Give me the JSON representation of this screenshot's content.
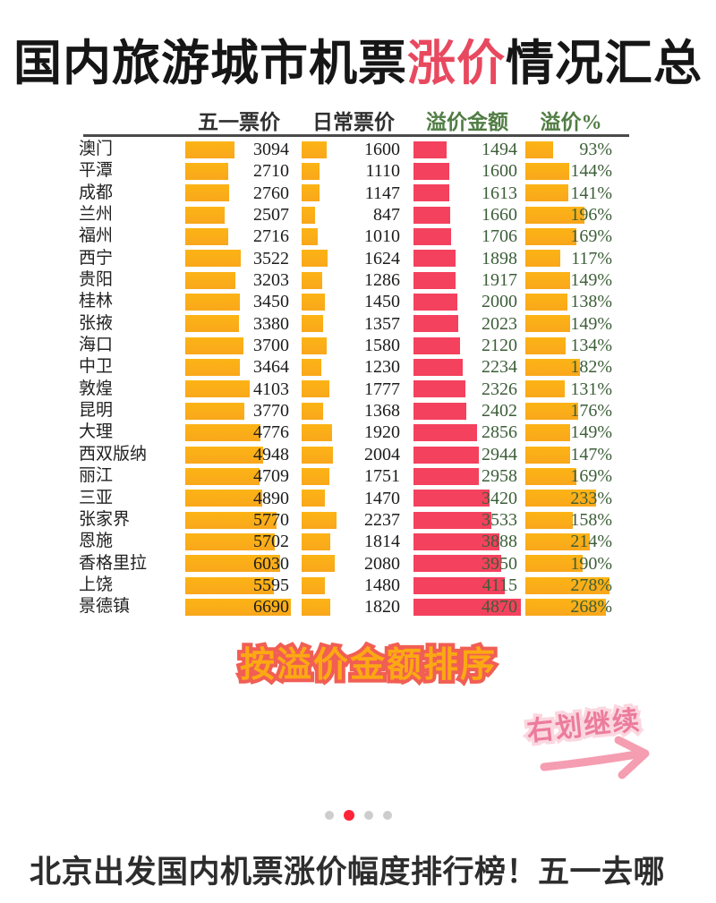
{
  "title": {
    "prefix": "国内旅游城市机票",
    "highlight": "涨价",
    "suffix": "情况汇总"
  },
  "table": {
    "headers": {
      "may": "五一票价",
      "daily": "日常票价",
      "premium": "溢价金额",
      "pct": "溢价%"
    },
    "rows": [
      {
        "city": "澳门",
        "may": 3094,
        "daily": 1600,
        "premium": 1494,
        "pct": 93
      },
      {
        "city": "平潭",
        "may": 2710,
        "daily": 1110,
        "premium": 1600,
        "pct": 144
      },
      {
        "city": "成都",
        "may": 2760,
        "daily": 1147,
        "premium": 1613,
        "pct": 141
      },
      {
        "city": "兰州",
        "may": 2507,
        "daily": 847,
        "premium": 1660,
        "pct": 196
      },
      {
        "city": "福州",
        "may": 2716,
        "daily": 1010,
        "premium": 1706,
        "pct": 169
      },
      {
        "city": "西宁",
        "may": 3522,
        "daily": 1624,
        "premium": 1898,
        "pct": 117
      },
      {
        "city": "贵阳",
        "may": 3203,
        "daily": 1286,
        "premium": 1917,
        "pct": 149
      },
      {
        "city": "桂林",
        "may": 3450,
        "daily": 1450,
        "premium": 2000,
        "pct": 138
      },
      {
        "city": "张掖",
        "may": 3380,
        "daily": 1357,
        "premium": 2023,
        "pct": 149
      },
      {
        "city": "海口",
        "may": 3700,
        "daily": 1580,
        "premium": 2120,
        "pct": 134
      },
      {
        "city": "中卫",
        "may": 3464,
        "daily": 1230,
        "premium": 2234,
        "pct": 182
      },
      {
        "city": "敦煌",
        "may": 4103,
        "daily": 1777,
        "premium": 2326,
        "pct": 131
      },
      {
        "city": "昆明",
        "may": 3770,
        "daily": 1368,
        "premium": 2402,
        "pct": 176
      },
      {
        "city": "大理",
        "may": 4776,
        "daily": 1920,
        "premium": 2856,
        "pct": 149
      },
      {
        "city": "西双版纳",
        "may": 4948,
        "daily": 2004,
        "premium": 2944,
        "pct": 147
      },
      {
        "city": "丽江",
        "may": 4709,
        "daily": 1751,
        "premium": 2958,
        "pct": 169
      },
      {
        "city": "三亚",
        "may": 4890,
        "daily": 1470,
        "premium": 3420,
        "pct": 233
      },
      {
        "city": "张家界",
        "may": 5770,
        "daily": 2237,
        "premium": 3533,
        "pct": 158
      },
      {
        "city": "恩施",
        "may": 5702,
        "daily": 1814,
        "premium": 3888,
        "pct": 214
      },
      {
        "city": "香格里拉",
        "may": 6030,
        "daily": 2080,
        "premium": 3950,
        "pct": 190
      },
      {
        "city": "上饶",
        "may": 5595,
        "daily": 1480,
        "premium": 4115,
        "pct": 278
      },
      {
        "city": "景德镇",
        "may": 6690,
        "daily": 1820,
        "premium": 4870,
        "pct": 268
      }
    ]
  },
  "notes": {
    "sort_note": "按溢价金额排序",
    "swipe_note": "右划继续"
  },
  "pagination": {
    "dots": 4,
    "active_index": 1
  },
  "caption": "北京出发国内机票涨价幅度排行榜！五一去哪",
  "colors": {
    "bar_orange": "#FBAC17",
    "bar_red": "#F4415E",
    "header_green": "#517D44",
    "value_green": "#3C5E38",
    "title_highlight": "#E8495F",
    "note_fill_orange": "#FBA913",
    "note_stroke_red": "#F15E54",
    "swipe_pink": "#EC7C9B",
    "arrow_pink": "#F59DB1",
    "dot_active": "#FF2438",
    "dot_inactive": "#CDCDCD"
  },
  "chart_data": {
    "type": "bar",
    "orientation": "horizontal",
    "title": "国内旅游城市机票涨价情况汇总",
    "note": "按溢价金额排序",
    "categories": [
      "澳门",
      "平潭",
      "成都",
      "兰州",
      "福州",
      "西宁",
      "贵阳",
      "桂林",
      "张掖",
      "海口",
      "中卫",
      "敦煌",
      "昆明",
      "大理",
      "西双版纳",
      "丽江",
      "三亚",
      "张家界",
      "恩施",
      "香格里拉",
      "上饶",
      "景德镇"
    ],
    "series": [
      {
        "name": "五一票价",
        "color": "#FBAC17",
        "values": [
          3094,
          2710,
          2760,
          2507,
          2716,
          3522,
          3203,
          3450,
          3380,
          3700,
          3464,
          4103,
          3770,
          4776,
          4948,
          4709,
          4890,
          5770,
          5702,
          6030,
          5595,
          6690
        ]
      },
      {
        "name": "日常票价",
        "color": "#FBAC17",
        "values": [
          1600,
          1110,
          1147,
          847,
          1010,
          1624,
          1286,
          1450,
          1357,
          1580,
          1230,
          1777,
          1368,
          1920,
          2004,
          1751,
          1470,
          2237,
          1814,
          2080,
          1480,
          1820
        ]
      },
      {
        "name": "溢价金额",
        "color": "#F4415E",
        "values": [
          1494,
          1600,
          1613,
          1660,
          1706,
          1898,
          1917,
          2000,
          2023,
          2120,
          2234,
          2326,
          2402,
          2856,
          2944,
          2958,
          3420,
          3533,
          3888,
          3950,
          4115,
          4870
        ]
      },
      {
        "name": "溢价%",
        "color": "#FBAC17",
        "values": [
          93,
          144,
          141,
          196,
          169,
          117,
          149,
          138,
          149,
          134,
          182,
          131,
          176,
          149,
          147,
          169,
          233,
          158,
          214,
          190,
          278,
          268
        ]
      }
    ],
    "legend_position": "top",
    "grid": false
  }
}
